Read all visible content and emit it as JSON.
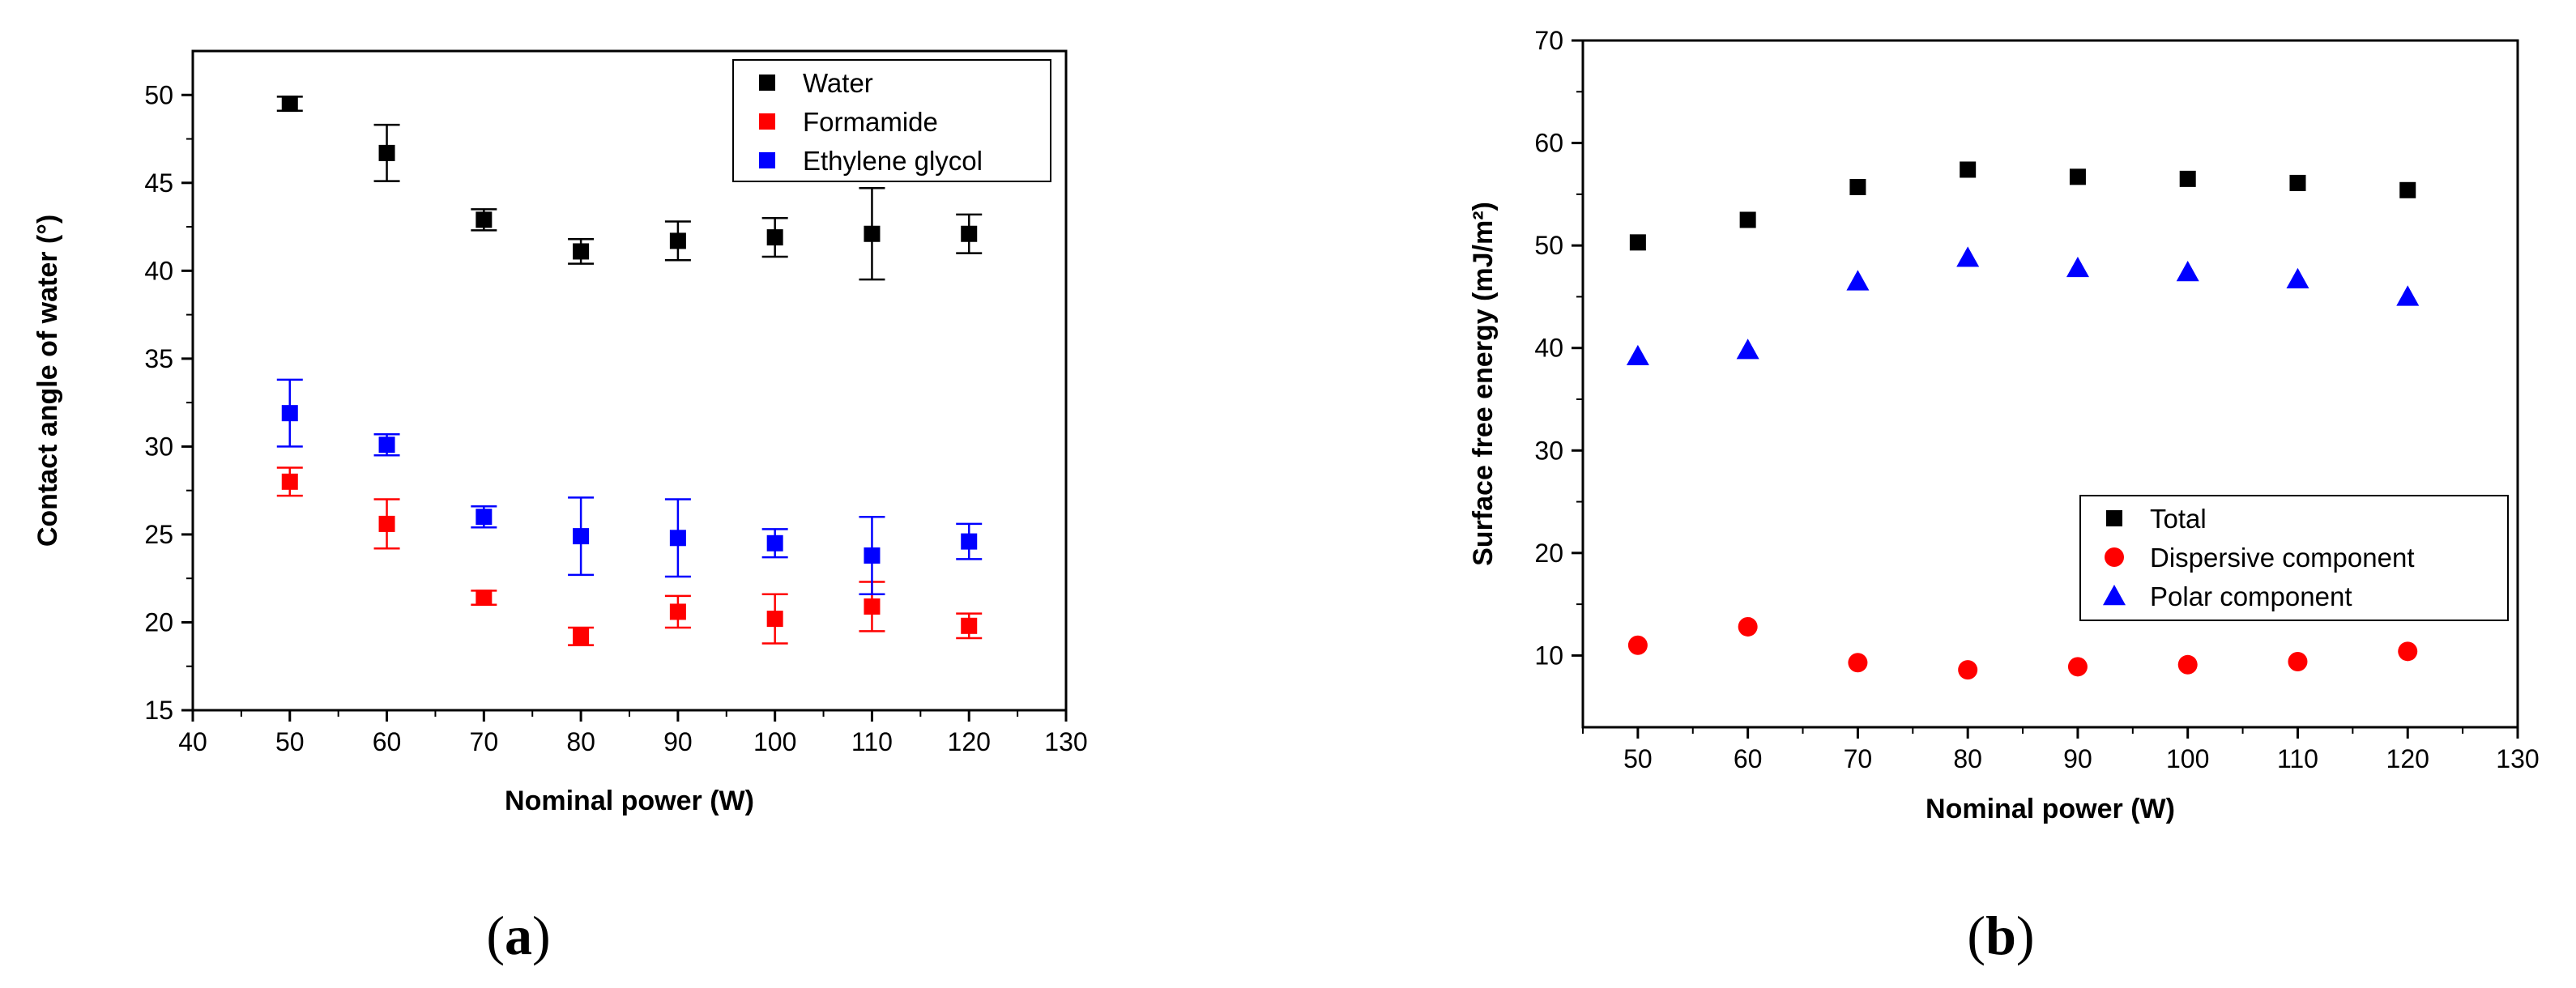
{
  "colors": {
    "black": "#000000",
    "red": "#ff0000",
    "blue": "#0000ff"
  },
  "chart_data": [
    {
      "panel_label": "a",
      "type": "scatter",
      "xlabel": "Nominal power (W)",
      "ylabel": "Contact angle of water (°)",
      "xlim": [
        40,
        130
      ],
      "ylim": [
        15,
        52.5
      ],
      "xticks": [
        "40",
        "50",
        "60",
        "70",
        "80",
        "90",
        "100",
        "110",
        "120",
        "130"
      ],
      "yticks": [
        "15",
        "20",
        "25",
        "30",
        "35",
        "40",
        "45",
        "50"
      ],
      "grid": false,
      "legend_position": "top-right",
      "x": [
        50,
        60,
        70,
        80,
        90,
        100,
        110,
        120
      ],
      "series": [
        {
          "name": "Water",
          "color": "#000000",
          "marker": "square",
          "values": [
            49.5,
            46.7,
            42.9,
            41.1,
            41.7,
            41.9,
            42.1,
            42.1
          ],
          "errors": [
            0.4,
            1.6,
            0.6,
            0.7,
            1.1,
            1.1,
            2.6,
            1.1
          ]
        },
        {
          "name": "Formamide",
          "color": "#ff0000",
          "marker": "square",
          "values": [
            28.0,
            25.6,
            21.4,
            19.2,
            20.6,
            20.2,
            20.9,
            19.8
          ],
          "errors": [
            0.8,
            1.4,
            0.4,
            0.5,
            0.9,
            1.4,
            1.4,
            0.7
          ]
        },
        {
          "name": "Ethylene glycol",
          "color": "#0000ff",
          "marker": "square",
          "values": [
            31.9,
            30.1,
            26.0,
            24.9,
            24.8,
            24.5,
            23.8,
            24.6
          ],
          "errors": [
            1.9,
            0.6,
            0.6,
            2.2,
            2.2,
            0.8,
            2.2,
            1.0
          ]
        }
      ]
    },
    {
      "panel_label": "b",
      "type": "scatter",
      "xlabel": "Nominal power (W)",
      "ylabel": "Surface free energy (mJ/m²)",
      "xlim": [
        45,
        130
      ],
      "ylim": [
        3,
        70
      ],
      "xticks": [
        "50",
        "60",
        "70",
        "80",
        "90",
        "100",
        "110",
        "120",
        "130"
      ],
      "yticks": [
        "10",
        "20",
        "30",
        "40",
        "50",
        "60",
        "70"
      ],
      "grid": false,
      "legend_position": "bottom-right",
      "x": [
        50,
        60,
        70,
        80,
        90,
        100,
        110,
        120
      ],
      "series": [
        {
          "name": "Total",
          "color": "#000000",
          "marker": "square",
          "values": [
            50.3,
            52.5,
            55.7,
            57.4,
            56.7,
            56.5,
            56.1,
            55.4
          ]
        },
        {
          "name": "Dispersive component",
          "color": "#ff0000",
          "marker": "circle",
          "values": [
            11.0,
            12.8,
            9.3,
            8.6,
            8.9,
            9.1,
            9.4,
            10.4
          ]
        },
        {
          "name": "Polar component",
          "color": "#0000ff",
          "marker": "triangle",
          "values": [
            39.2,
            39.8,
            46.5,
            48.8,
            47.8,
            47.4,
            46.7,
            45.0
          ]
        }
      ]
    }
  ]
}
